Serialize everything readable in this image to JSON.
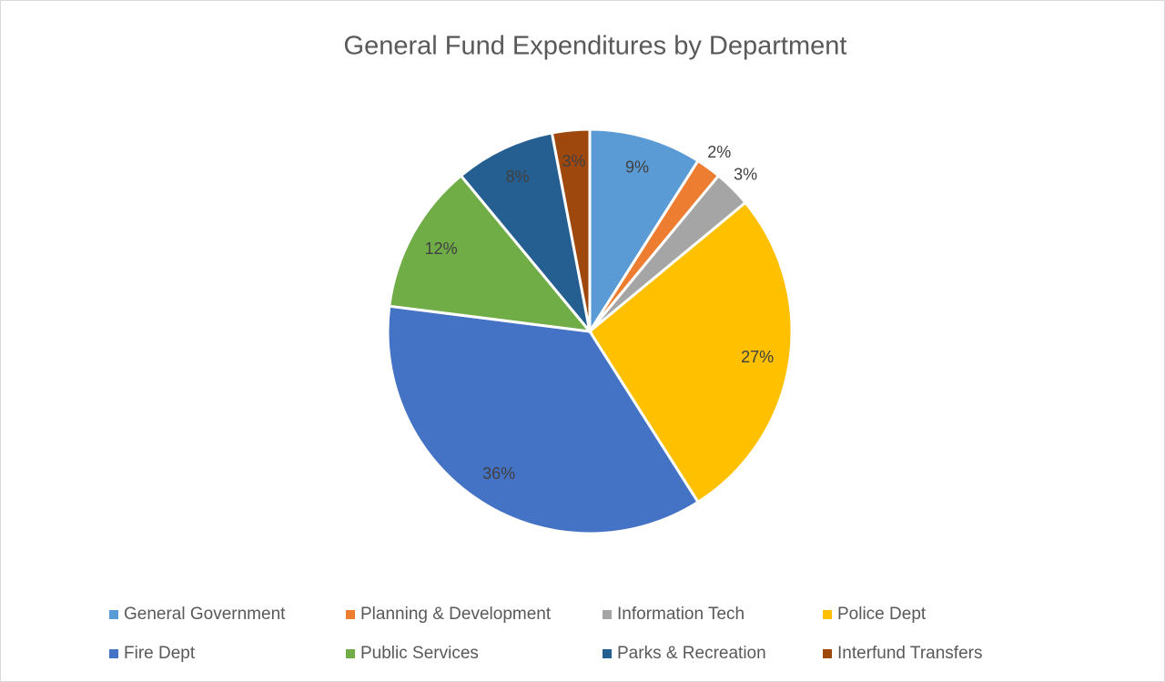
{
  "chart_data": {
    "type": "pie",
    "title": "General Fund Expenditures by Department",
    "categories": [
      "General Government",
      "Planning & Development",
      "Information Tech",
      "Police Dept",
      "Fire Dept",
      "Public Services",
      "Parks & Recreation",
      "Interfund Transfers"
    ],
    "values": [
      9,
      2,
      3,
      27,
      36,
      12,
      8,
      3
    ],
    "value_labels": [
      "9%",
      "2%",
      "3%",
      "27%",
      "36%",
      "12%",
      "8%",
      "3%"
    ],
    "label_positions": [
      "inside",
      "outside",
      "outside",
      "inside",
      "inside",
      "inside",
      "inside",
      "inside"
    ],
    "colors": [
      "#5b9bd5",
      "#ed7d31",
      "#a5a5a5",
      "#ffc000",
      "#4472c4",
      "#70ad47",
      "#255e91",
      "#9e480e"
    ],
    "legend": "bottom"
  }
}
